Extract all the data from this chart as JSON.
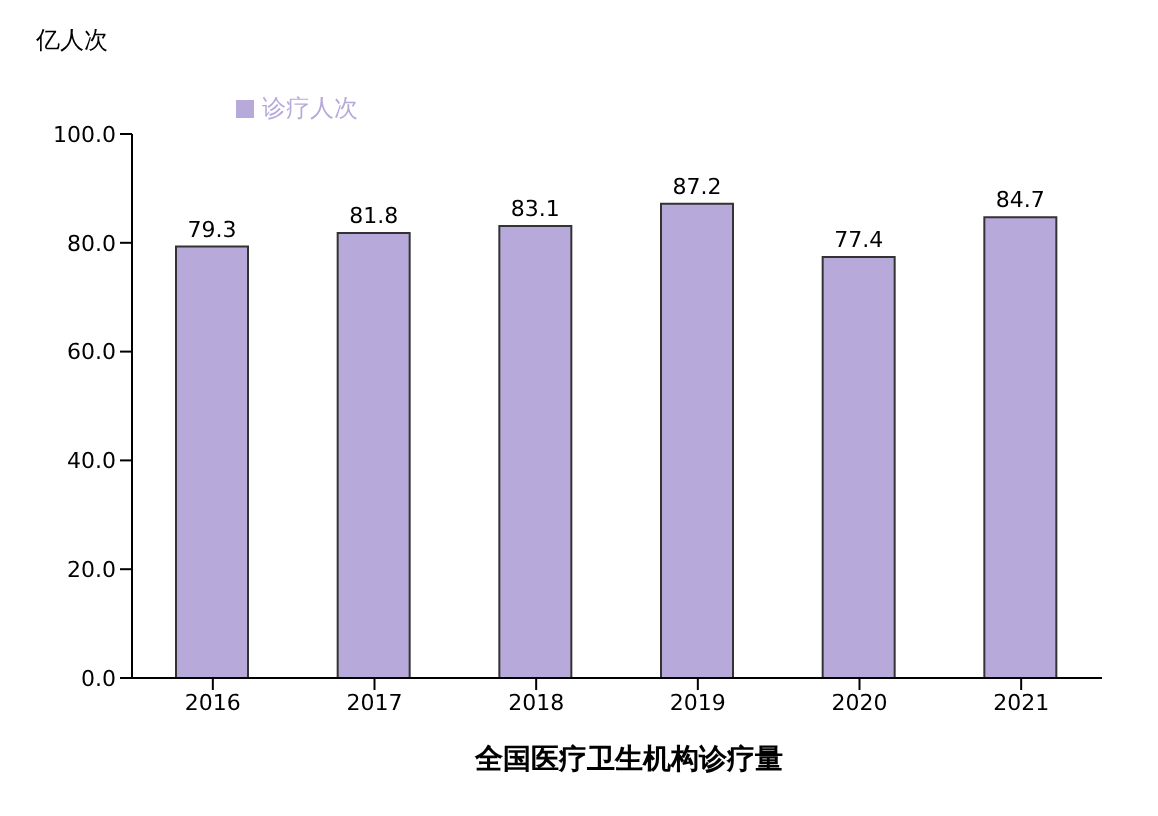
{
  "chart_data": {
    "type": "bar",
    "title": "全国医疗卫生机构诊疗量",
    "ylabel": "亿人次",
    "categories": [
      "2016",
      "2017",
      "2018",
      "2019",
      "2020",
      "2021"
    ],
    "series": [
      {
        "name": "诊疗人次",
        "color": "#b7a9d9",
        "values": [
          79.3,
          81.8,
          83.1,
          87.2,
          77.4,
          84.7
        ]
      }
    ],
    "ylim": [
      0,
      100
    ],
    "yticks": [
      {
        "value": 0,
        "label": "0.0"
      },
      {
        "value": 20,
        "label": "20.0"
      },
      {
        "value": 40,
        "label": "40.0"
      },
      {
        "value": 60,
        "label": "60.0"
      },
      {
        "value": 80,
        "label": "80.0"
      },
      {
        "value": 100,
        "label": "100.0"
      }
    ],
    "data_labels": true,
    "legend": "top left",
    "grid": false
  }
}
